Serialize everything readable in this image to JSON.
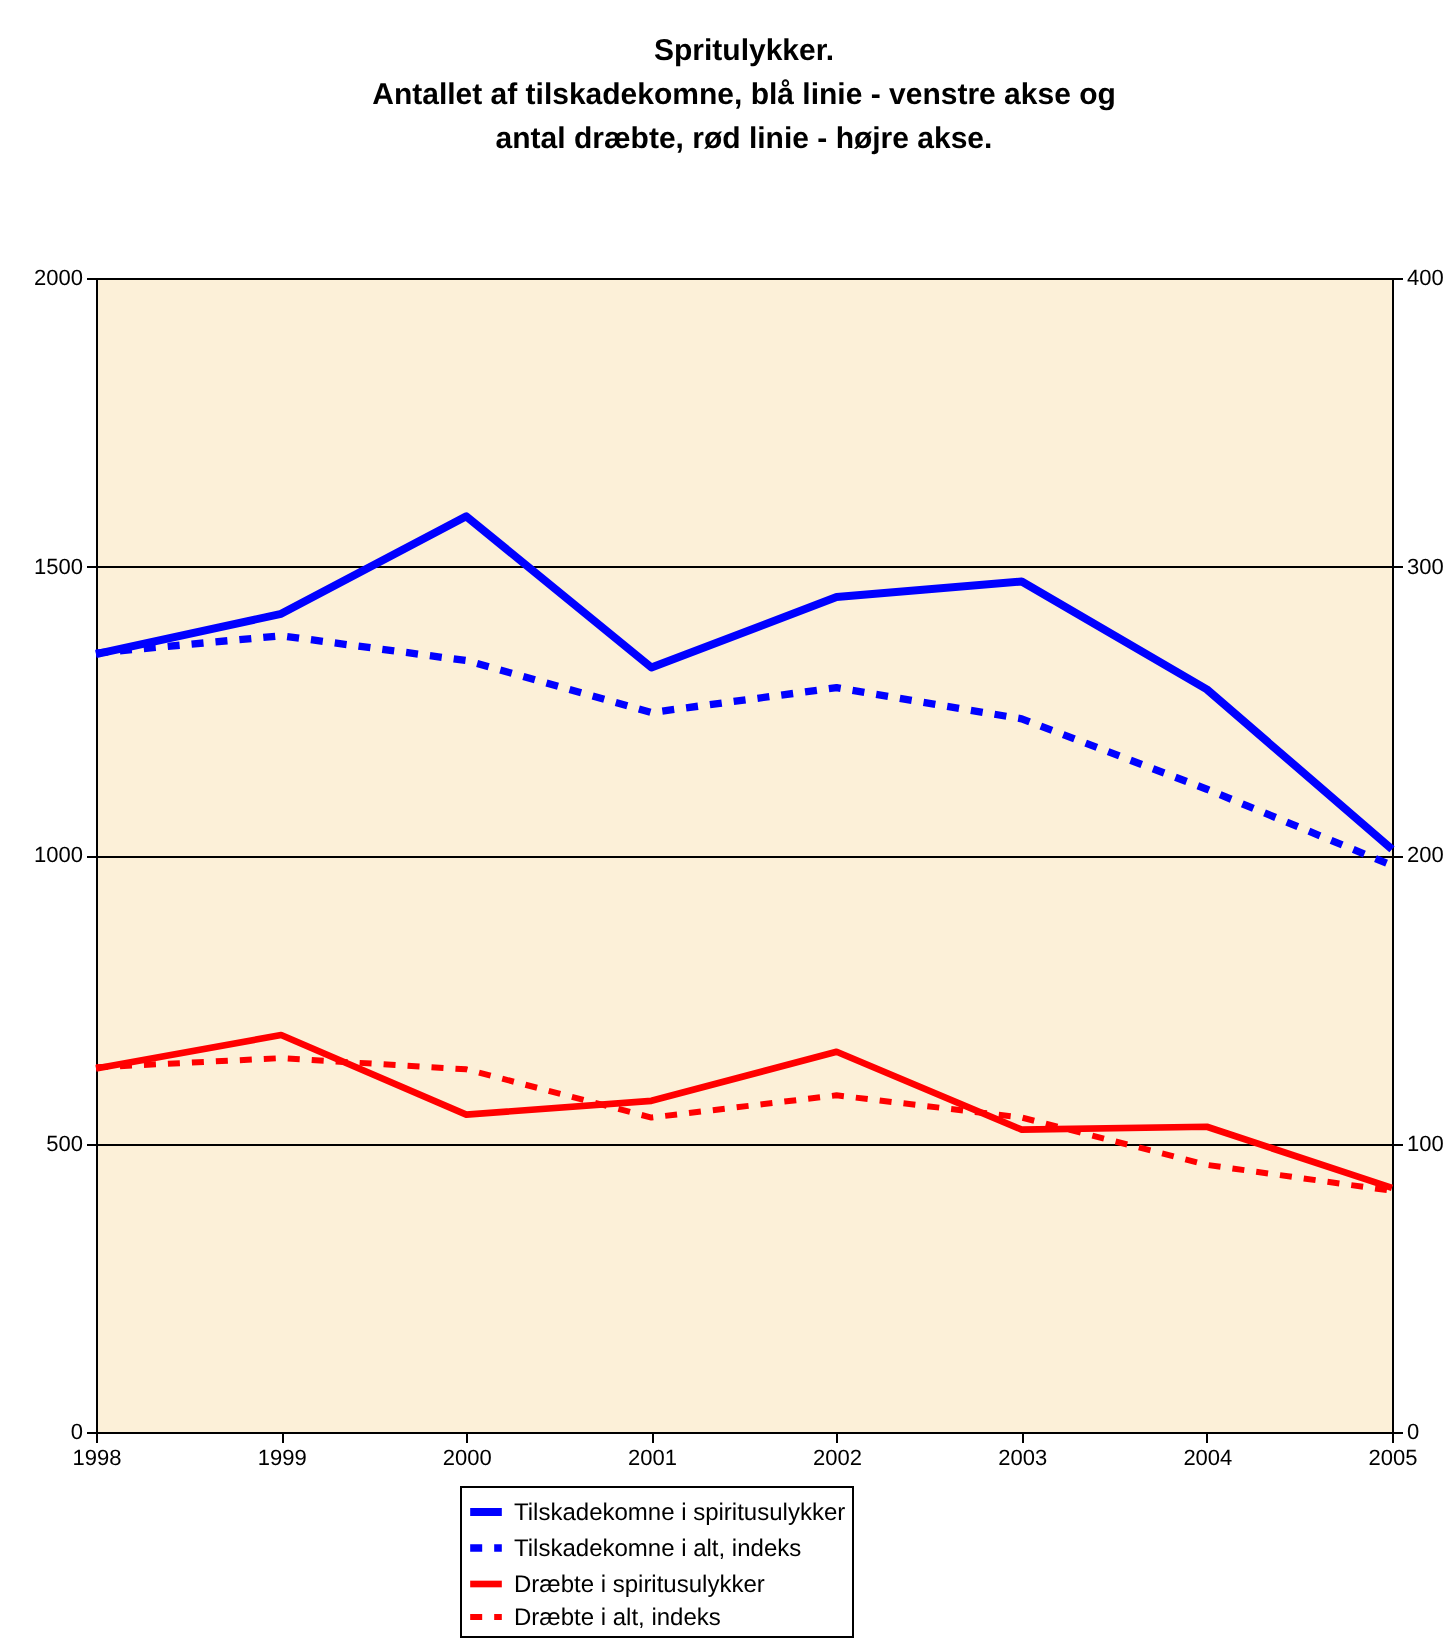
{
  "chart_data": {
    "type": "line",
    "title": [
      "Spritulykker.",
      "Antallet af tilskadekomne, blå linie - venstre akse og",
      "antal dræbte, rød linie - højre akse."
    ],
    "x": [
      1998,
      1999,
      2000,
      2001,
      2002,
      2003,
      2004,
      2005
    ],
    "xlim": [
      1998,
      2005
    ],
    "xticks": [
      1998,
      1999,
      2000,
      2001,
      2002,
      2003,
      2004,
      2005
    ],
    "ylim": [
      0,
      2000
    ],
    "yticks": [
      0,
      500,
      1000,
      1500,
      2000
    ],
    "y2lim": [
      0,
      400
    ],
    "y2ticks": [
      0,
      100,
      200,
      300,
      400
    ],
    "grid": "y",
    "legend": "bottom",
    "marker": "none",
    "series": [
      {
        "name": "Tilskadekomne i spiritusulykker",
        "color": "#0000ff",
        "line_style": "solid",
        "values": [
          1348,
          1418,
          1587,
          1325,
          1447,
          1474,
          1287,
          1010
        ]
      },
      {
        "name": "Tilskadekomne i alt, indeks",
        "color": "#0000ff",
        "line_style": "dashed",
        "values": [
          1350,
          1380,
          1337,
          1247,
          1290,
          1236,
          1114,
          982
        ]
      },
      {
        "name": "Dræbte i spiritusulykker",
        "color": "#ff0000",
        "line_style": "solid",
        "axis": "y2",
        "values": [
          126,
          137.6,
          110,
          114.8,
          131.8,
          104.8,
          105.8,
          84.6
        ]
      },
      {
        "name": "Dræbte i alt, indeks",
        "color": "#ff0000",
        "line_style": "dashed",
        "axis": "y2",
        "values": [
          126.4,
          129.6,
          125.7,
          109,
          116.7,
          109,
          92.6,
          83.6
        ]
      }
    ]
  }
}
